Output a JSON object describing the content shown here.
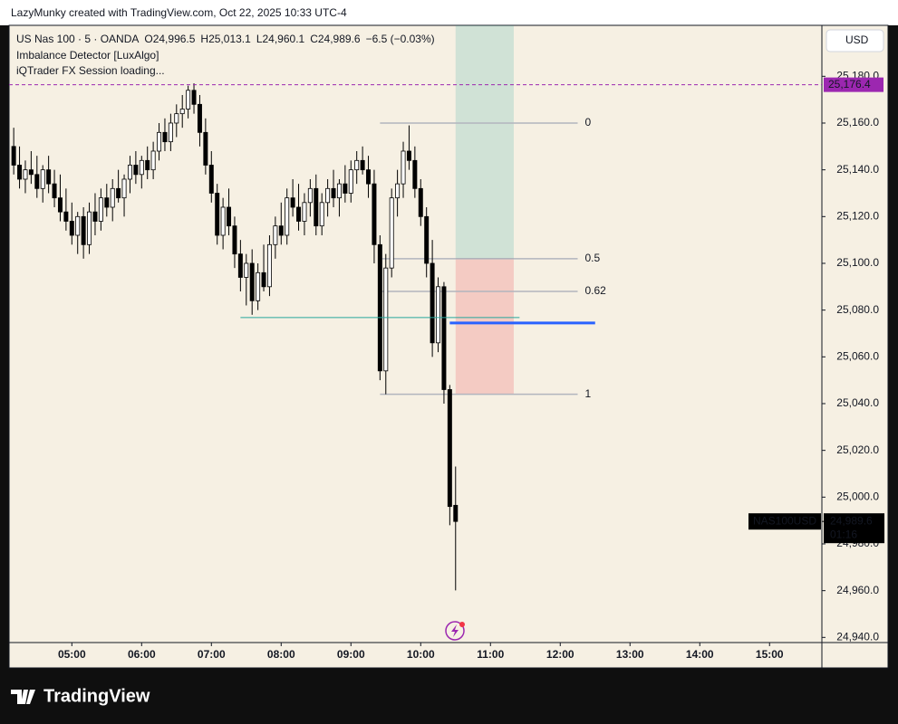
{
  "chart_data": {
    "type": "candlestick",
    "credit": "LazyMunky created with TradingView.com, Oct 22, 2025 10:33 UTC-4",
    "title": "US Nas 100 · 5 · OANDA",
    "ohlc_text": [
      "O24,996.5",
      "H25,013.1",
      "L24,960.1",
      "C24,989.6",
      "−6.5 (−0.03%)"
    ],
    "indicators": [
      "Imbalance Detector [LuxAlgo]",
      "iQTrader FX Session loading..."
    ],
    "currency": "USD",
    "brand": "TradingView",
    "up_color": "#ffffff",
    "down_color": "#000000",
    "x": [
      "04:10",
      "04:15",
      "04:20",
      "04:25",
      "04:30",
      "04:35",
      "04:40",
      "04:45",
      "04:50",
      "04:55",
      "05:00",
      "05:05",
      "05:10",
      "05:15",
      "05:20",
      "05:25",
      "05:30",
      "05:35",
      "05:40",
      "05:45",
      "05:50",
      "05:55",
      "06:00",
      "06:05",
      "06:10",
      "06:15",
      "06:20",
      "06:25",
      "06:30",
      "06:35",
      "06:40",
      "06:45",
      "06:50",
      "06:55",
      "07:00",
      "07:05",
      "07:10",
      "07:15",
      "07:20",
      "07:25",
      "07:30",
      "07:35",
      "07:40",
      "07:45",
      "07:50",
      "07:55",
      "08:00",
      "08:05",
      "08:10",
      "08:15",
      "08:20",
      "08:25",
      "08:30",
      "08:35",
      "08:40",
      "08:45",
      "08:50",
      "08:55",
      "09:00",
      "09:05",
      "09:10",
      "09:15",
      "09:20",
      "09:25",
      "09:30",
      "09:35",
      "09:40",
      "09:45",
      "09:50",
      "09:55",
      "10:00",
      "10:05",
      "10:10",
      "10:15",
      "10:20",
      "10:25",
      "10:30"
    ],
    "open": [
      25150,
      25142,
      25136,
      25140,
      25138,
      25132,
      25140,
      25134,
      25128,
      25122,
      25118,
      25112,
      25120,
      25108,
      25122,
      25118,
      25128,
      25124,
      25132,
      25128,
      25136,
      25142,
      25138,
      25144,
      25140,
      25148,
      25156,
      25152,
      25160,
      25164,
      25166,
      25174,
      25168,
      25156,
      25142,
      25130,
      25112,
      25124,
      25116,
      25104,
      25094,
      25100,
      25084,
      25096,
      25090,
      25108,
      25116,
      25112,
      25128,
      25124,
      25118,
      25126,
      25132,
      25116,
      25126,
      25132,
      25128,
      25134,
      25130,
      25140,
      25144,
      25140,
      25134,
      25108,
      25054,
      25098,
      25128,
      25134,
      25148,
      25144,
      25132,
      25120,
      25100,
      25066,
      25090,
      25046,
      24996.5
    ],
    "high": [
      25158,
      25150,
      25144,
      25148,
      25146,
      25142,
      25146,
      25140,
      25138,
      25132,
      25126,
      25122,
      25124,
      25126,
      25130,
      25132,
      25134,
      25136,
      25140,
      25138,
      25146,
      25148,
      25146,
      25150,
      25152,
      25160,
      25162,
      25164,
      25168,
      25172,
      25176,
      25177,
      25172,
      25162,
      25148,
      25134,
      25128,
      25132,
      25120,
      25110,
      25104,
      25106,
      25100,
      25108,
      25112,
      25120,
      25126,
      25132,
      25136,
      25134,
      25130,
      25136,
      25138,
      25130,
      25136,
      25140,
      25136,
      25142,
      25144,
      25148,
      25150,
      25146,
      25140,
      25112,
      25104,
      25132,
      25140,
      25152,
      25159,
      25150,
      25136,
      25124,
      25110,
      25094,
      25092,
      25048,
      25013.1
    ],
    "low": [
      25138,
      25132,
      25130,
      25134,
      25128,
      25126,
      25130,
      25124,
      25118,
      25114,
      25108,
      25104,
      25102,
      25104,
      25112,
      25114,
      25120,
      25118,
      25126,
      25120,
      25130,
      25134,
      25132,
      25136,
      25136,
      25144,
      25148,
      25148,
      25154,
      25158,
      25162,
      25164,
      25150,
      25138,
      25126,
      25108,
      25106,
      25112,
      25098,
      25088,
      25082,
      25078,
      25080,
      25088,
      25086,
      25102,
      25108,
      25108,
      25120,
      25114,
      25112,
      25120,
      25112,
      25112,
      25120,
      25124,
      25120,
      25126,
      25126,
      25134,
      25138,
      25128,
      25100,
      25050,
      25044,
      25094,
      25120,
      25128,
      25140,
      25128,
      25116,
      25094,
      25060,
      25062,
      25040,
      24988,
      24960.1
    ],
    "close": [
      25142,
      25136,
      25140,
      25138,
      25132,
      25140,
      25134,
      25128,
      25122,
      25118,
      25112,
      25120,
      25108,
      25122,
      25118,
      25128,
      25124,
      25132,
      25128,
      25136,
      25142,
      25138,
      25144,
      25140,
      25148,
      25156,
      25152,
      25160,
      25164,
      25166,
      25174,
      25168,
      25156,
      25142,
      25130,
      25112,
      25124,
      25116,
      25104,
      25094,
      25100,
      25084,
      25096,
      25090,
      25108,
      25116,
      25112,
      25128,
      25124,
      25118,
      25126,
      25132,
      25116,
      25126,
      25132,
      25128,
      25134,
      25130,
      25140,
      25144,
      25140,
      25134,
      25108,
      25054,
      25098,
      25128,
      25134,
      25148,
      25144,
      25132,
      25120,
      25100,
      25066,
      25090,
      25046,
      24996,
      24989.6
    ],
    "xlim": [
      "04:06",
      "15:45"
    ],
    "xticks": [
      "05:00",
      "06:00",
      "07:00",
      "08:00",
      "09:00",
      "10:00",
      "11:00",
      "12:00",
      "13:00",
      "14:00",
      "15:00"
    ],
    "ylim": [
      24937.8,
      25201.8
    ],
    "yticks": [
      {
        "value": 24940,
        "label": "24,940.0"
      },
      {
        "value": 24960,
        "label": "24,960.0"
      },
      {
        "value": 24980,
        "label": "24,980.0"
      },
      {
        "value": 25000,
        "label": "25,000.0"
      },
      {
        "value": 25020,
        "label": "25,020.0"
      },
      {
        "value": 25040,
        "label": "25,040.0"
      },
      {
        "value": 25060,
        "label": "25,060.0"
      },
      {
        "value": 25080,
        "label": "25,080.0"
      },
      {
        "value": 25100,
        "label": "25,100.0"
      },
      {
        "value": 25120,
        "label": "25,120.0"
      },
      {
        "value": 25140,
        "label": "25,140.0"
      },
      {
        "value": 25160,
        "label": "25,160.0"
      },
      {
        "value": 25180,
        "label": "25,180.0"
      }
    ],
    "alert_line": {
      "value": 25176.4,
      "label": "25,176.4",
      "color": "#9c27b0"
    },
    "last_price": {
      "symbol": "NAS100USD",
      "value": 24989.6,
      "label": "24,989.6",
      "countdown": "01:16"
    },
    "fib": {
      "start": "09:25",
      "end": "12:15",
      "color": "#b2b5be",
      "levels": [
        {
          "ratio": 0,
          "price": 25160
        },
        {
          "ratio": 0.5,
          "price": 25102
        },
        {
          "ratio": 0.62,
          "price": 25088
        },
        {
          "ratio": 1,
          "price": 25044
        }
      ]
    },
    "position": {
      "start": "10:30",
      "end": "11:20",
      "target": 25202,
      "entry": 25102,
      "stop": 25044
    },
    "lines": [
      {
        "start": "10:25",
        "end": "12:30",
        "price": 25074.5,
        "color": "#2962ff"
      },
      {
        "start": "07:25",
        "end": "11:25",
        "price": 25076.8,
        "color": "#26a69a"
      }
    ]
  }
}
